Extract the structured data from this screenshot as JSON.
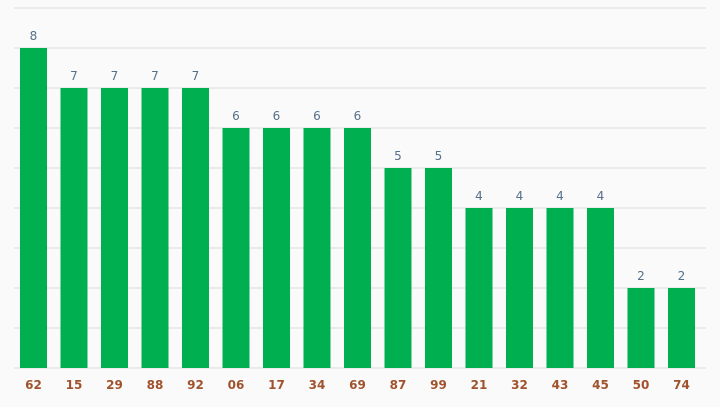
{
  "chart_data": {
    "type": "bar",
    "categories": [
      "62",
      "15",
      "29",
      "88",
      "92",
      "06",
      "17",
      "34",
      "69",
      "87",
      "99",
      "21",
      "32",
      "43",
      "45",
      "50",
      "74"
    ],
    "values": [
      8,
      7,
      7,
      7,
      7,
      6,
      6,
      6,
      6,
      5,
      5,
      4,
      4,
      4,
      4,
      2,
      2
    ],
    "ylim": [
      0,
      9
    ],
    "grid": true,
    "colors": {
      "bar": "#00b050",
      "data_label": "#55708a",
      "tick_label": "#a0522d",
      "grid": "#d9d9d9"
    }
  }
}
